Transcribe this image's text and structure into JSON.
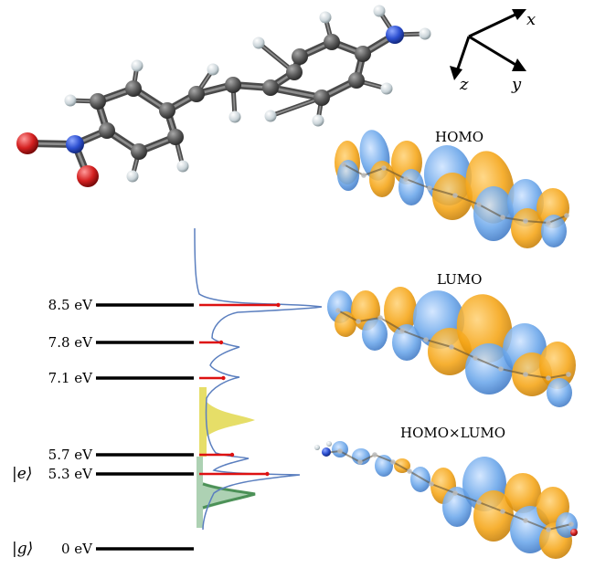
{
  "levels": [
    {
      "id": "g",
      "energy": "0 eV",
      "ket": "|g⟩",
      "bar_ratio": null
    },
    {
      "id": "e",
      "energy": "5.3 eV",
      "ket": "|e⟩",
      "bar_ratio": 0.62
    },
    {
      "id": "l57",
      "energy": "5.7 eV",
      "ket": "",
      "bar_ratio": 0.3
    },
    {
      "id": "l71",
      "energy": "7.1 eV",
      "ket": "",
      "bar_ratio": 0.22
    },
    {
      "id": "l78",
      "energy": "7.8 eV",
      "ket": "",
      "bar_ratio": 0.2
    },
    {
      "id": "l85",
      "energy": "8.5 eV",
      "ket": "",
      "bar_ratio": 0.72
    }
  ],
  "axes": {
    "x": "x",
    "y": "y",
    "z": "z"
  },
  "orbitals": {
    "homo": "HOMO",
    "lumo": "LUMO",
    "product": "HOMO×LUMO"
  },
  "colors": {
    "carbon": "#5a5a5a",
    "hydrogen": "#d8e0e4",
    "nitrogen": "#2c4fd0",
    "oxygen": "#d42020",
    "orbital_positive": "#f5a516",
    "orbital_negative": "#6aa6ea",
    "spectrum": "#5b7fbf",
    "stick": "#dd1111",
    "yellow_band": "#e2d84e",
    "green_band": "#6aab74"
  }
}
